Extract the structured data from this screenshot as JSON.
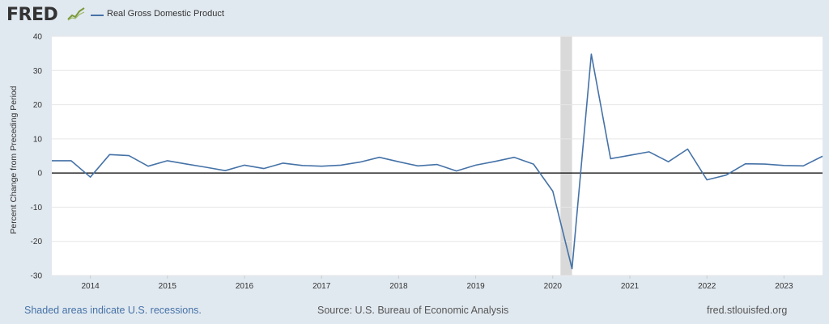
{
  "header": {
    "logo_text": "FRED",
    "logo_icon": "chart-line-icon",
    "legend_label": "Real Gross Domestic Product"
  },
  "footer": {
    "note": "Shaded areas indicate U.S. recessions.",
    "source": "Source: U.S. Bureau of Economic Analysis",
    "url": "fred.stlouisfed.org"
  },
  "colors": {
    "series": "#4572a7",
    "recession": "#d9d9d9",
    "background": "#e1e9f0",
    "plot": "#ffffff",
    "zero_line": "#000000"
  },
  "chart_data": {
    "type": "line",
    "title": "",
    "xlabel": "",
    "ylabel": "Percent Change from Preceding Period",
    "ylim": [
      -30,
      40
    ],
    "yticks": [
      40,
      30,
      20,
      10,
      0,
      -10,
      -20,
      -30
    ],
    "xlim": [
      2013.5,
      2023.5
    ],
    "xticks": [
      "2014",
      "2015",
      "2016",
      "2017",
      "2018",
      "2019",
      "2020",
      "2021",
      "2022",
      "2023"
    ],
    "grid": true,
    "legend": "top-left",
    "recessions": [
      [
        2020.1,
        2020.25
      ]
    ],
    "series": [
      {
        "name": "Real Gross Domestic Product",
        "x": [
          2013.5,
          2013.75,
          2014.0,
          2014.25,
          2014.5,
          2014.75,
          2015.0,
          2015.25,
          2015.5,
          2015.75,
          2016.0,
          2016.25,
          2016.5,
          2016.75,
          2017.0,
          2017.25,
          2017.5,
          2017.75,
          2018.0,
          2018.25,
          2018.5,
          2018.75,
          2019.0,
          2019.25,
          2019.5,
          2019.75,
          2020.0,
          2020.25,
          2020.5,
          2020.75,
          2021.0,
          2021.25,
          2021.5,
          2021.75,
          2022.0,
          2022.25,
          2022.5,
          2022.75,
          2023.0,
          2023.25,
          2023.5
        ],
        "values": [
          3.6,
          3.6,
          -1.2,
          5.4,
          5.1,
          2.0,
          3.6,
          2.6,
          1.7,
          0.7,
          2.3,
          1.3,
          2.9,
          2.2,
          2.0,
          2.3,
          3.2,
          4.6,
          3.3,
          2.1,
          2.5,
          0.6,
          2.3,
          3.4,
          4.6,
          2.6,
          -5.3,
          -28.0,
          34.8,
          4.2,
          5.2,
          6.2,
          3.3,
          7.0,
          -2.0,
          -0.6,
          2.7,
          2.6,
          2.2,
          2.1,
          4.9
        ]
      }
    ]
  }
}
